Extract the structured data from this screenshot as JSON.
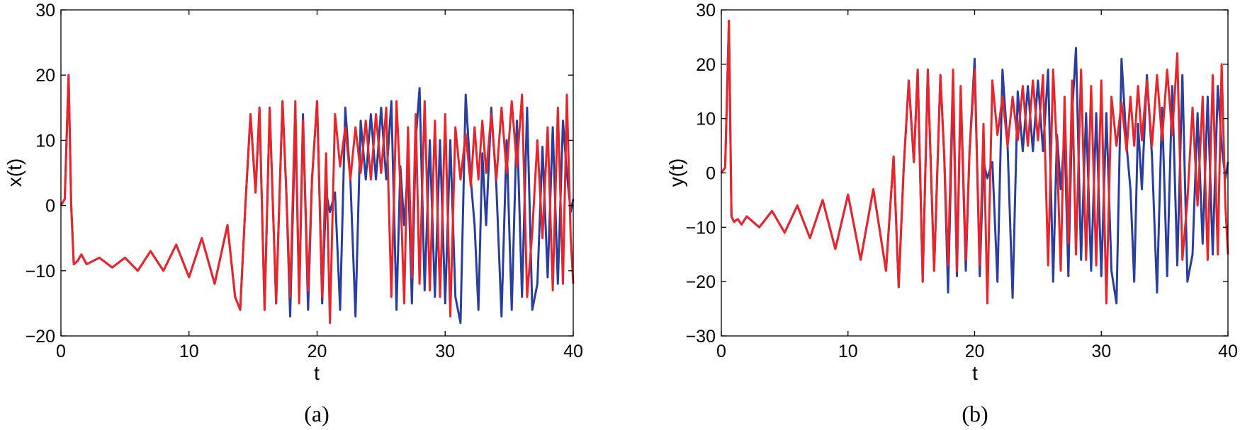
{
  "chart_data": [
    {
      "type": "line",
      "panel": "(a)",
      "xlabel": "t",
      "ylabel": "x(t)",
      "xlim": [
        0,
        40
      ],
      "ylim": [
        -20,
        30
      ],
      "xticks": [
        0,
        10,
        20,
        30,
        40
      ],
      "yticks": [
        -20,
        -10,
        0,
        10,
        20,
        30
      ],
      "grid": false,
      "series": [
        {
          "color": "#2a3f9d",
          "x": [
            0,
            0.3,
            0.6,
            0.8,
            1.0,
            1.3,
            1.6,
            2.0,
            3.0,
            4.0,
            5.0,
            6.0,
            7.0,
            8.0,
            9.0,
            10.0,
            11.0,
            12.0,
            13.0,
            13.6,
            14.0,
            14.4,
            14.8,
            15.2,
            15.5,
            15.9,
            16.3,
            16.8,
            17.3,
            17.6,
            17.9,
            18.3,
            18.6,
            18.9,
            19.3,
            19.6,
            20.0,
            20.4,
            20.7,
            21.0,
            21.4,
            21.8,
            22.2,
            22.6,
            23.0,
            23.4,
            23.8,
            24.2,
            24.6,
            25.0,
            25.4,
            25.8,
            26.2,
            26.5,
            26.8,
            27.1,
            27.4,
            27.7,
            28.0,
            28.4,
            28.8,
            29.2,
            29.6,
            30.0,
            30.4,
            30.8,
            31.2,
            31.6,
            32.0,
            32.3,
            32.6,
            32.9,
            33.2,
            33.6,
            34.0,
            34.4,
            34.8,
            35.2,
            35.6,
            36.0,
            36.4,
            36.8,
            37.2,
            37.6,
            38.0,
            38.4,
            38.8,
            39.2,
            39.5,
            39.8,
            40.0
          ],
          "y": [
            0,
            1,
            20,
            0,
            -9,
            -8.5,
            -7.5,
            -9,
            -8,
            -9.5,
            -8,
            -10,
            -7,
            -10,
            -6,
            -11,
            -5,
            -12,
            -3,
            -14,
            -16,
            0,
            14,
            2,
            15,
            -16,
            15,
            -15,
            16,
            2,
            -17,
            13,
            -14,
            14,
            -16,
            4,
            16,
            -15,
            2,
            -1,
            2,
            -16,
            15,
            4,
            -17,
            13,
            4,
            14,
            4,
            15,
            4,
            16,
            -16,
            6,
            -3,
            6,
            -15,
            10,
            18,
            -13,
            10,
            -14,
            10,
            -15,
            10,
            -14,
            -18,
            17,
            4,
            -3,
            -16,
            8,
            -3,
            15,
            3,
            -17,
            10,
            -16,
            13,
            -14,
            15,
            -16,
            -12,
            9,
            -11,
            12,
            -12,
            13,
            5,
            -1,
            1
          ]
        },
        {
          "color": "#e8252a",
          "x": [
            0,
            0.3,
            0.6,
            0.8,
            1.0,
            1.3,
            1.6,
            2.0,
            3.0,
            4.0,
            5.0,
            6.0,
            7.0,
            8.0,
            9.0,
            10.0,
            11.0,
            12.0,
            13.0,
            13.6,
            14.0,
            14.4,
            14.8,
            15.2,
            15.5,
            15.9,
            16.3,
            16.8,
            17.3,
            17.6,
            17.9,
            18.3,
            18.6,
            18.9,
            19.3,
            19.6,
            20.0,
            20.4,
            20.7,
            21.0,
            21.4,
            21.8,
            22.2,
            22.6,
            23.0,
            23.4,
            23.8,
            24.2,
            24.6,
            25.0,
            25.4,
            25.8,
            26.2,
            26.5,
            26.8,
            27.1,
            27.4,
            27.7,
            28.0,
            28.4,
            28.8,
            29.2,
            29.6,
            30.0,
            30.4,
            30.8,
            31.2,
            31.6,
            32.0,
            32.3,
            32.6,
            32.9,
            33.2,
            33.6,
            34.0,
            34.4,
            34.8,
            35.2,
            35.6,
            36.0,
            36.4,
            36.8,
            37.2,
            37.6,
            38.0,
            38.4,
            38.8,
            39.2,
            39.5,
            39.8,
            40.0
          ],
          "y": [
            0,
            1,
            20,
            0,
            -9,
            -8.5,
            -7.5,
            -9,
            -8,
            -9.5,
            -8,
            -10,
            -7,
            -10,
            -6,
            -11,
            -5,
            -12,
            -3,
            -14,
            -16,
            0,
            14,
            2,
            15,
            -16,
            15,
            -15,
            16,
            2,
            -14,
            16,
            -15,
            13,
            -13,
            4,
            16,
            -14,
            8,
            -18,
            14,
            6,
            12,
            4,
            12,
            5,
            13,
            4,
            14,
            5,
            15,
            -14,
            16,
            3,
            -15,
            12,
            -11,
            14,
            -12,
            16,
            -13,
            13,
            -14,
            14,
            -17,
            12,
            4,
            11,
            3,
            12,
            4,
            13,
            5,
            14,
            4,
            15,
            5,
            16,
            6,
            17,
            -14,
            -4,
            10,
            -5,
            12,
            -13,
            15,
            -12,
            17,
            -5,
            -12
          ]
        }
      ]
    },
    {
      "type": "line",
      "panel": "(b)",
      "xlabel": "t",
      "ylabel": "y(t)",
      "xlim": [
        0,
        40
      ],
      "ylim": [
        -30,
        30
      ],
      "xticks": [
        0,
        10,
        20,
        30,
        40
      ],
      "yticks": [
        -30,
        -20,
        -10,
        0,
        10,
        20,
        30
      ],
      "grid": false,
      "series": [
        {
          "color": "#2a3f9d",
          "x": [
            0,
            0.3,
            0.6,
            0.8,
            1.0,
            1.3,
            1.6,
            2.0,
            3.0,
            4.0,
            5.0,
            6.0,
            7.0,
            8.0,
            9.0,
            10.0,
            11.0,
            12.0,
            13.0,
            13.6,
            14.0,
            14.4,
            14.8,
            15.2,
            15.5,
            15.9,
            16.3,
            16.8,
            17.3,
            17.6,
            17.9,
            18.3,
            18.6,
            18.9,
            19.3,
            19.6,
            20.0,
            20.4,
            20.7,
            21.0,
            21.4,
            21.8,
            22.2,
            22.6,
            23.0,
            23.4,
            23.8,
            24.2,
            24.6,
            25.0,
            25.4,
            25.8,
            26.2,
            26.5,
            26.8,
            27.1,
            27.4,
            27.7,
            28.0,
            28.4,
            28.8,
            29.2,
            29.6,
            30.0,
            30.4,
            30.8,
            31.2,
            31.6,
            32.0,
            32.3,
            32.6,
            32.9,
            33.2,
            33.6,
            34.0,
            34.4,
            34.8,
            35.2,
            35.6,
            36.0,
            36.4,
            36.8,
            37.2,
            37.6,
            38.0,
            38.4,
            38.8,
            39.2,
            39.5,
            39.8,
            40.0
          ],
          "y": [
            0,
            1,
            28,
            -8,
            -9,
            -8.5,
            -9.5,
            -8,
            -10,
            -7,
            -11,
            -6,
            -12,
            -5,
            -14,
            -4,
            -16,
            -3,
            -18,
            3,
            -21,
            1,
            17,
            2,
            19,
            -20,
            19,
            -18,
            18,
            3,
            -22,
            16,
            -19,
            15,
            -18,
            4,
            21,
            -19,
            2,
            -1,
            2,
            -20,
            19,
            5,
            -23,
            15,
            4,
            16,
            4,
            17,
            4,
            19,
            -20,
            7,
            -3,
            7,
            -19,
            11,
            23,
            -16,
            11,
            -18,
            11,
            -19,
            11,
            -18,
            -24,
            21,
            5,
            -3,
            -20,
            9,
            -3,
            18,
            3,
            -22,
            12,
            -19,
            16,
            -17,
            18,
            -20,
            -15,
            11,
            -13,
            14,
            -15,
            16,
            5,
            -1,
            2
          ]
        },
        {
          "color": "#e8252a",
          "x": [
            0,
            0.3,
            0.6,
            0.8,
            1.0,
            1.3,
            1.6,
            2.0,
            3.0,
            4.0,
            5.0,
            6.0,
            7.0,
            8.0,
            9.0,
            10.0,
            11.0,
            12.0,
            13.0,
            13.6,
            14.0,
            14.4,
            14.8,
            15.2,
            15.5,
            15.9,
            16.3,
            16.8,
            17.3,
            17.6,
            17.9,
            18.3,
            18.6,
            18.9,
            19.3,
            19.6,
            20.0,
            20.4,
            20.7,
            21.0,
            21.4,
            21.8,
            22.2,
            22.6,
            23.0,
            23.4,
            23.8,
            24.2,
            24.6,
            25.0,
            25.4,
            25.8,
            26.2,
            26.5,
            26.8,
            27.1,
            27.4,
            27.7,
            28.0,
            28.4,
            28.8,
            29.2,
            29.6,
            30.0,
            30.4,
            30.8,
            31.2,
            31.6,
            32.0,
            32.3,
            32.6,
            32.9,
            33.2,
            33.6,
            34.0,
            34.4,
            34.8,
            35.2,
            35.6,
            36.0,
            36.4,
            36.8,
            37.2,
            37.6,
            38.0,
            38.4,
            38.8,
            39.2,
            39.5,
            39.8,
            40.0
          ],
          "y": [
            0,
            1,
            28,
            -8,
            -9,
            -8.5,
            -9.5,
            -8,
            -10,
            -7,
            -11,
            -6,
            -12,
            -5,
            -14,
            -4,
            -16,
            -3,
            -18,
            3,
            -21,
            1,
            17,
            2,
            19,
            -20,
            19,
            -18,
            18,
            3,
            -17,
            19,
            -18,
            16,
            -16,
            4,
            19,
            -17,
            9,
            -24,
            17,
            7,
            14,
            5,
            14,
            6,
            16,
            5,
            17,
            6,
            18,
            -17,
            19,
            4,
            -18,
            14,
            -13,
            17,
            -15,
            19,
            -16,
            16,
            -17,
            17,
            -24,
            14,
            5,
            13,
            4,
            14,
            5,
            16,
            6,
            17,
            5,
            18,
            6,
            19,
            7,
            22,
            -16,
            -5,
            12,
            -6,
            14,
            -16,
            18,
            -15,
            20,
            -6,
            -15
          ]
        }
      ]
    }
  ],
  "captions": [
    "(a)",
    "(b)"
  ]
}
